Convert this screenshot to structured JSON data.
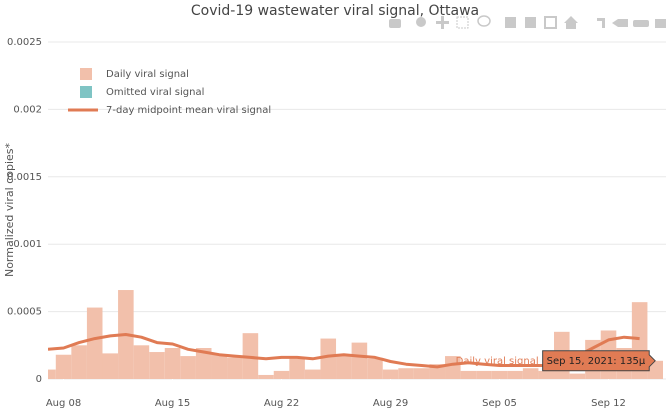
{
  "chart_data": {
    "type": "bar_line",
    "title": "Covid-19 wastewater viral signal, Ottawa",
    "y_label": "Normalized viral copies*",
    "x": [
      "2021-08-07",
      "2021-08-08",
      "2021-08-09",
      "2021-08-10",
      "2021-08-11",
      "2021-08-12",
      "2021-08-13",
      "2021-08-14",
      "2021-08-15",
      "2021-08-16",
      "2021-08-17",
      "2021-08-18",
      "2021-08-19",
      "2021-08-20",
      "2021-08-21",
      "2021-08-22",
      "2021-08-23",
      "2021-08-24",
      "2021-08-25",
      "2021-08-26",
      "2021-08-27",
      "2021-08-28",
      "2021-08-29",
      "2021-08-30",
      "2021-08-31",
      "2021-09-01",
      "2021-09-02",
      "2021-09-03",
      "2021-09-04",
      "2021-09-05",
      "2021-09-06",
      "2021-09-07",
      "2021-09-08",
      "2021-09-09",
      "2021-09-10",
      "2021-09-11",
      "2021-09-12",
      "2021-09-13",
      "2021-09-14",
      "2021-09-15"
    ],
    "series": [
      {
        "name": "Daily viral signal",
        "kind": "bar",
        "color": "#f2c0ab",
        "values": [
          7e-05,
          0.00018,
          0.00025,
          0.00053,
          0.00019,
          0.00066,
          0.00025,
          0.0002,
          0.00023,
          0.00017,
          0.00023,
          0.00018,
          0.00016,
          0.00034,
          3e-05,
          6e-05,
          0.00015,
          7e-05,
          0.0003,
          0.00017,
          0.00027,
          0.00015,
          7e-05,
          8e-05,
          8e-05,
          0.00011,
          0.00017,
          6e-05,
          6e-05,
          6e-05,
          6e-05,
          8e-05,
          6e-05,
          0.00035,
          4e-05,
          0.00029,
          0.00036,
          0.00023,
          0.00057,
          0.000135
        ]
      },
      {
        "name": "Omitted viral signal",
        "kind": "bar",
        "color": "#7fc4c4",
        "values": [
          null,
          null,
          null,
          null,
          null,
          null,
          null,
          null,
          null,
          null,
          null,
          null,
          null,
          null,
          null,
          null,
          null,
          null,
          null,
          null,
          null,
          null,
          null,
          null,
          null,
          null,
          null,
          null,
          null,
          null,
          null,
          null,
          null,
          null,
          null,
          null,
          null,
          null,
          null,
          null
        ]
      },
      {
        "name": "7-day midpoint mean viral signal",
        "kind": "line",
        "color": "#e07b54",
        "values": [
          0.00022,
          0.00023,
          0.00027,
          0.0003,
          0.00032,
          0.00033,
          0.00031,
          0.00027,
          0.00026,
          0.00022,
          0.0002,
          0.00018,
          0.00017,
          0.00016,
          0.00015,
          0.00016,
          0.00016,
          0.00015,
          0.00017,
          0.00018,
          0.00017,
          0.00016,
          0.00013,
          0.00011,
          0.0001,
          9e-05,
          0.00011,
          0.00012,
          0.00011,
          0.0001,
          0.0001,
          0.0001,
          0.0001,
          0.00012,
          0.00017,
          0.00023,
          0.00029,
          0.00031,
          0.0003,
          null
        ]
      }
    ],
    "ylim": [
      0,
      0.0025
    ],
    "yticks": [
      0,
      0.0005,
      0.001,
      0.0015,
      0.002,
      0.0025
    ],
    "xlim": [
      "2021-08-07",
      "2021-09-15T12:00:00Z"
    ],
    "xticks": [
      {
        "value": "2021-08-08",
        "label": "Aug 08"
      },
      {
        "value": "2021-08-15",
        "label": "Aug 15"
      },
      {
        "value": "2021-08-22",
        "label": "Aug 22"
      },
      {
        "value": "2021-08-29",
        "label": "Aug 29"
      },
      {
        "value": "2021-09-05",
        "label": "Sep 05"
      },
      {
        "value": "2021-09-12",
        "label": "Sep 12"
      }
    ],
    "grid": true,
    "legend": "top-left",
    "tooltip": {
      "series": "Daily viral signal",
      "label": "Sep 15, 2021: 135μ"
    }
  }
}
